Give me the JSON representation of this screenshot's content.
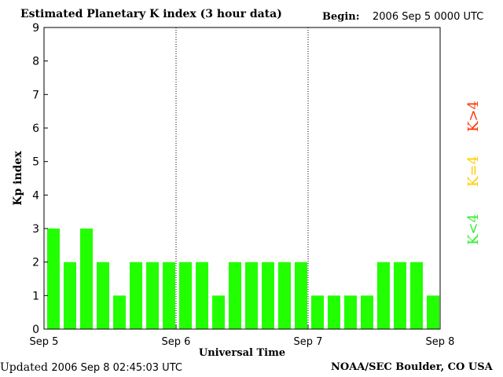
{
  "header": {
    "title": "Estimated Planetary K index (3 hour data)",
    "begin_label": "Begin:",
    "begin_value": "2006 Sep 5 0000 UTC"
  },
  "footer": {
    "updated_label": "Updated",
    "updated_value": "2006 Sep  8 02:45:03 UTC",
    "credit": "NOAA/SEC Boulder, CO USA"
  },
  "legend": {
    "items": [
      {
        "label": "K>4",
        "color": "#ff3300"
      },
      {
        "label": "K=4",
        "color": "#ffcc00"
      },
      {
        "label": "K<4",
        "color": "#33ee33"
      }
    ]
  },
  "chart_data": {
    "type": "bar",
    "xlabel": "Universal Time",
    "ylabel": "Kp index",
    "ylim": [
      0,
      9
    ],
    "yticks": [
      "0",
      "1",
      "2",
      "3",
      "4",
      "5",
      "6",
      "7",
      "8",
      "9"
    ],
    "xticks": [
      "Sep 5",
      "Sep 6",
      "Sep 7",
      "Sep 8"
    ],
    "interval_hours": 3,
    "bar_color": "#22ff00",
    "values": [
      3,
      2,
      3,
      2,
      1,
      2,
      2,
      2,
      2,
      2,
      1,
      2,
      2,
      2,
      2,
      2,
      1,
      1,
      1,
      1,
      2,
      2,
      2,
      1
    ],
    "day_separators": "dotted",
    "grid": false
  }
}
